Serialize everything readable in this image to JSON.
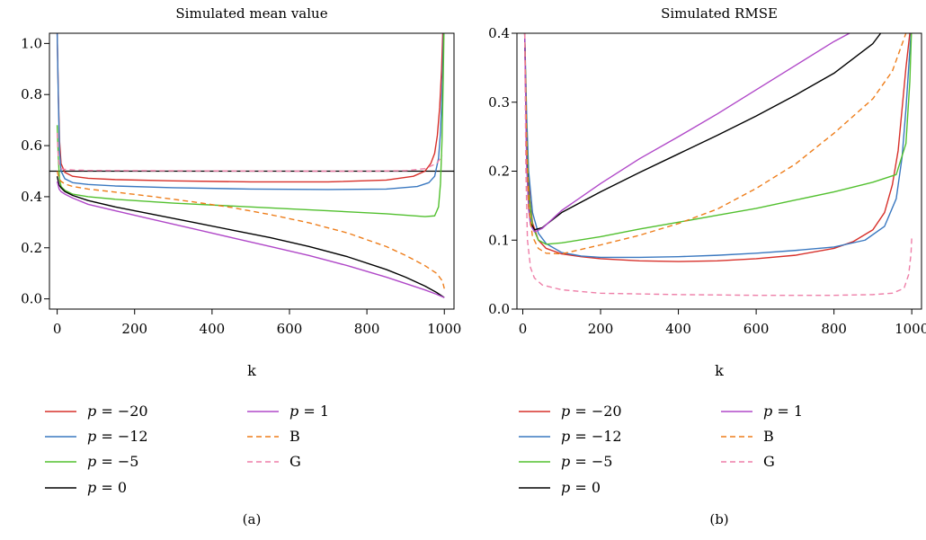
{
  "colors": {
    "p_-20": "#d7302a",
    "p_-12": "#3a78c0",
    "p_-5": "#52c02f",
    "p_0": "#000000",
    "p_1": "#b048c8",
    "B": "#ee7d1a",
    "G": "#ee7fa8",
    "axis": "#000000"
  },
  "legend": [
    {
      "key": "p_-20",
      "prefix": "p",
      "rest": " = −20",
      "style": "solid"
    },
    {
      "key": "p_-12",
      "prefix": "p",
      "rest": " = −12",
      "style": "solid"
    },
    {
      "key": "p_-5",
      "prefix": "p",
      "rest": " = −5",
      "style": "solid"
    },
    {
      "key": "p_0",
      "prefix": "p",
      "rest": " = 0",
      "style": "solid"
    },
    {
      "key": "p_1",
      "prefix": "p",
      "rest": " = 1",
      "style": "solid"
    },
    {
      "key": "B",
      "prefix": "",
      "rest": "B",
      "style": "dashed"
    },
    {
      "key": "G",
      "prefix": "",
      "rest": "G",
      "style": "dashed"
    }
  ],
  "chart_data": [
    {
      "type": "line",
      "panel_label": "(a)",
      "title": "Simulated mean value",
      "xlabel": "k",
      "ylabel": "",
      "xlim": [
        -20,
        1025
      ],
      "ylim": [
        -0.04,
        1.04
      ],
      "xticks": [
        0,
        200,
        400,
        600,
        800,
        1000
      ],
      "yticks": [
        0.0,
        0.2,
        0.4,
        0.6,
        0.8,
        1.0
      ],
      "ytick_labels": [
        "0.0",
        "0.2",
        "0.4",
        "0.6",
        "0.8",
        "1.0"
      ],
      "reference_line": {
        "y": 0.5
      },
      "grid": false,
      "series": [
        {
          "key": "p_-20",
          "x": [
            0,
            3,
            6,
            10,
            20,
            40,
            80,
            150,
            300,
            500,
            700,
            850,
            920,
            950,
            965,
            975,
            982,
            988,
            993,
            996
          ],
          "y": [
            1.04,
            0.8,
            0.62,
            0.53,
            0.495,
            0.48,
            0.472,
            0.467,
            0.462,
            0.458,
            0.458,
            0.465,
            0.48,
            0.5,
            0.53,
            0.57,
            0.64,
            0.75,
            0.9,
            1.04
          ]
        },
        {
          "key": "p_-12",
          "x": [
            0,
            3,
            6,
            10,
            20,
            40,
            80,
            150,
            300,
            500,
            700,
            850,
            930,
            960,
            975,
            985,
            990,
            995,
            998
          ],
          "y": [
            1.04,
            0.78,
            0.58,
            0.5,
            0.47,
            0.455,
            0.448,
            0.442,
            0.435,
            0.43,
            0.428,
            0.43,
            0.44,
            0.455,
            0.48,
            0.55,
            0.65,
            0.85,
            1.04
          ]
        },
        {
          "key": "p_-5",
          "x": [
            0,
            3,
            6,
            10,
            20,
            40,
            80,
            150,
            300,
            500,
            700,
            850,
            950,
            975,
            985,
            990,
            994,
            997,
            999
          ],
          "y": [
            0.68,
            0.55,
            0.47,
            0.44,
            0.425,
            0.41,
            0.4,
            0.39,
            0.375,
            0.36,
            0.345,
            0.333,
            0.322,
            0.325,
            0.36,
            0.45,
            0.62,
            0.85,
            1.04
          ]
        },
        {
          "key": "p_0",
          "x": [
            0,
            5,
            10,
            20,
            40,
            80,
            150,
            250,
            350,
            450,
            550,
            650,
            750,
            850,
            900,
            950,
            980,
            1000
          ],
          "y": [
            0.48,
            0.445,
            0.435,
            0.42,
            0.405,
            0.385,
            0.36,
            0.33,
            0.3,
            0.27,
            0.24,
            0.205,
            0.165,
            0.115,
            0.085,
            0.05,
            0.025,
            0.005
          ]
        },
        {
          "key": "p_1",
          "x": [
            0,
            5,
            10,
            20,
            40,
            80,
            150,
            250,
            350,
            450,
            550,
            650,
            750,
            850,
            900,
            950,
            980,
            1000
          ],
          "y": [
            0.46,
            0.43,
            0.42,
            0.41,
            0.395,
            0.37,
            0.345,
            0.31,
            0.275,
            0.24,
            0.205,
            0.17,
            0.13,
            0.085,
            0.06,
            0.035,
            0.018,
            0.005
          ]
        },
        {
          "key": "B",
          "x": [
            0,
            5,
            10,
            20,
            40,
            80,
            150,
            250,
            350,
            450,
            550,
            650,
            750,
            850,
            900,
            950,
            980,
            995,
            1000
          ],
          "y": [
            0.5,
            0.47,
            0.46,
            0.45,
            0.44,
            0.43,
            0.418,
            0.4,
            0.38,
            0.358,
            0.33,
            0.298,
            0.258,
            0.205,
            0.17,
            0.13,
            0.1,
            0.07,
            0.04
          ]
        },
        {
          "key": "G",
          "x": [
            0,
            3,
            6,
            10,
            20,
            40,
            80,
            200,
            400,
            600,
            800,
            900,
            950,
            980,
            995
          ],
          "y": [
            0.65,
            0.55,
            0.52,
            0.51,
            0.507,
            0.505,
            0.503,
            0.502,
            0.501,
            0.5,
            0.5,
            0.502,
            0.51,
            0.53,
            0.56
          ]
        }
      ]
    },
    {
      "type": "line",
      "panel_label": "(b)",
      "title": "Simulated RMSE",
      "xlabel": "k",
      "ylabel": "",
      "xlim": [
        -15,
        1025
      ],
      "ylim": [
        0.0,
        0.4
      ],
      "xticks": [
        0,
        200,
        400,
        600,
        800,
        1000
      ],
      "yticks": [
        0.0,
        0.1,
        0.2,
        0.3,
        0.4
      ],
      "ytick_labels": [
        "0.0",
        "0.1",
        "0.2",
        "0.3",
        "0.4"
      ],
      "grid": false,
      "series": [
        {
          "key": "p_-20",
          "x": [
            5,
            8,
            12,
            18,
            25,
            40,
            60,
            100,
            150,
            200,
            300,
            400,
            500,
            600,
            700,
            800,
            850,
            900,
            930,
            950,
            965,
            975,
            985,
            995
          ],
          "y": [
            0.4,
            0.3,
            0.22,
            0.16,
            0.125,
            0.1,
            0.088,
            0.08,
            0.076,
            0.073,
            0.07,
            0.069,
            0.07,
            0.073,
            0.078,
            0.088,
            0.098,
            0.115,
            0.14,
            0.18,
            0.23,
            0.29,
            0.35,
            0.4
          ]
        },
        {
          "key": "p_-12",
          "x": [
            5,
            10,
            15,
            25,
            40,
            60,
            100,
            150,
            200,
            300,
            400,
            500,
            600,
            700,
            800,
            880,
            930,
            960,
            975,
            985,
            992,
            998
          ],
          "y": [
            0.4,
            0.28,
            0.2,
            0.14,
            0.11,
            0.095,
            0.082,
            0.077,
            0.075,
            0.075,
            0.076,
            0.078,
            0.081,
            0.085,
            0.09,
            0.1,
            0.12,
            0.16,
            0.22,
            0.29,
            0.35,
            0.4
          ]
        },
        {
          "key": "p_-5",
          "x": [
            5,
            10,
            15,
            25,
            40,
            60,
            100,
            200,
            300,
            400,
            500,
            600,
            700,
            800,
            900,
            960,
            985,
            995,
            999
          ],
          "y": [
            0.4,
            0.25,
            0.17,
            0.12,
            0.1,
            0.094,
            0.096,
            0.105,
            0.116,
            0.126,
            0.136,
            0.146,
            0.158,
            0.17,
            0.184,
            0.195,
            0.24,
            0.33,
            0.4
          ]
        },
        {
          "key": "p_0",
          "x": [
            5,
            10,
            15,
            20,
            30,
            50,
            100,
            200,
            300,
            400,
            500,
            600,
            700,
            800,
            900,
            920
          ],
          "y": [
            0.4,
            0.22,
            0.15,
            0.125,
            0.115,
            0.118,
            0.14,
            0.17,
            0.198,
            0.225,
            0.252,
            0.28,
            0.31,
            0.342,
            0.385,
            0.4
          ]
        },
        {
          "key": "p_1",
          "x": [
            5,
            10,
            15,
            20,
            30,
            50,
            100,
            200,
            300,
            400,
            500,
            600,
            700,
            800,
            840
          ],
          "y": [
            0.4,
            0.21,
            0.145,
            0.122,
            0.112,
            0.117,
            0.143,
            0.182,
            0.218,
            0.25,
            0.283,
            0.318,
            0.353,
            0.388,
            0.4
          ]
        },
        {
          "key": "B",
          "x": [
            5,
            10,
            15,
            25,
            40,
            60,
            100,
            200,
            300,
            400,
            500,
            600,
            700,
            800,
            900,
            950,
            985
          ],
          "y": [
            0.4,
            0.24,
            0.15,
            0.105,
            0.088,
            0.081,
            0.08,
            0.093,
            0.107,
            0.124,
            0.145,
            0.175,
            0.21,
            0.255,
            0.305,
            0.345,
            0.4
          ]
        },
        {
          "key": "G",
          "x": [
            5,
            8,
            12,
            20,
            30,
            50,
            100,
            200,
            400,
            600,
            800,
            900,
            950,
            980,
            992,
            998,
            1000
          ],
          "y": [
            0.4,
            0.2,
            0.1,
            0.06,
            0.045,
            0.035,
            0.028,
            0.023,
            0.021,
            0.02,
            0.02,
            0.021,
            0.023,
            0.03,
            0.05,
            0.08,
            0.105
          ]
        }
      ]
    }
  ]
}
